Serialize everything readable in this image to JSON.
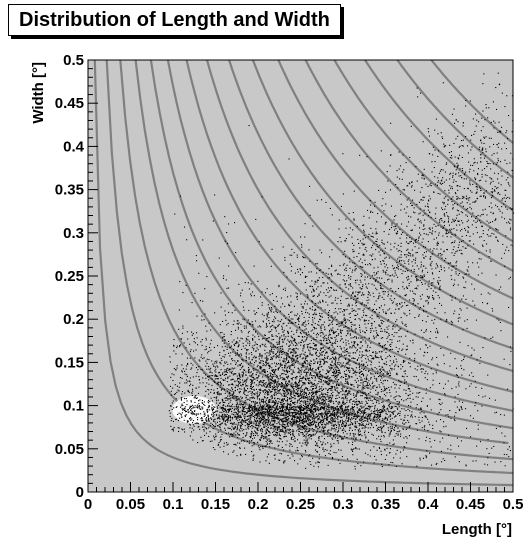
{
  "chart_data": {
    "type": "scatter",
    "title": "Distribution of Length and Width",
    "xlabel": "Length [°]",
    "ylabel": "Width [°]",
    "xlim": [
      0,
      0.5
    ],
    "ylim": [
      0,
      0.5
    ],
    "x_ticks": [
      "0",
      "0.05",
      "0.1",
      "0.15",
      "0.2",
      "0.25",
      "0.3",
      "0.35",
      "0.4",
      "0.45",
      "0.5"
    ],
    "y_ticks": [
      "0",
      "0.05",
      "0.1",
      "0.15",
      "0.2",
      "0.25",
      "0.3",
      "0.35",
      "0.4",
      "0.45",
      "0.5"
    ],
    "grid": false,
    "density_peak": {
      "x": 0.24,
      "y": 0.1
    },
    "reference_curves": {
      "shape": "hyperbola",
      "levels": [
        0.004,
        0.011,
        0.019,
        0.028,
        0.037,
        0.047,
        0.058,
        0.07,
        0.083,
        0.097,
        0.112,
        0.128,
        0.145,
        0.163,
        0.182,
        0.202
      ]
    },
    "colors": {
      "plot_background": "#c8c8c8",
      "points": "#000000",
      "curves": "#808080",
      "highlight": "#ffffff"
    }
  }
}
